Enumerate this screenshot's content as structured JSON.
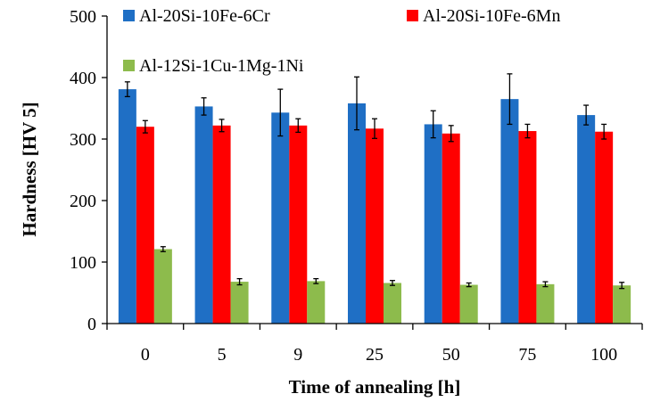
{
  "chart_data": {
    "type": "bar",
    "xlabel": "Time of annealing [h]",
    "ylabel": "Hardness [HV 5]",
    "ylim": [
      0,
      500
    ],
    "yticks": [
      0,
      100,
      200,
      300,
      400,
      500
    ],
    "categories": [
      "0",
      "5",
      "9",
      "25",
      "50",
      "75",
      "100"
    ],
    "grid": false,
    "legend_position": "top",
    "series": [
      {
        "name": "Al-20Si-10Fe-6Cr",
        "color": "#1f6fc5",
        "values": [
          381,
          353,
          343,
          358,
          324,
          365,
          339
        ],
        "errors": [
          12,
          14,
          38,
          43,
          22,
          41,
          16
        ]
      },
      {
        "name": "Al-20Si-10Fe-6Mn",
        "color": "#ff0000",
        "values": [
          320,
          322,
          322,
          317,
          309,
          313,
          312
        ],
        "errors": [
          10,
          10,
          11,
          16,
          13,
          11,
          12
        ]
      },
      {
        "name": "Al-12Si-1Cu-1Mg-1Ni",
        "color": "#8dbb4c",
        "values": [
          121,
          68,
          69,
          66,
          63,
          64,
          62
        ],
        "errors": [
          4,
          5,
          4,
          4,
          3,
          4,
          5
        ]
      }
    ]
  }
}
